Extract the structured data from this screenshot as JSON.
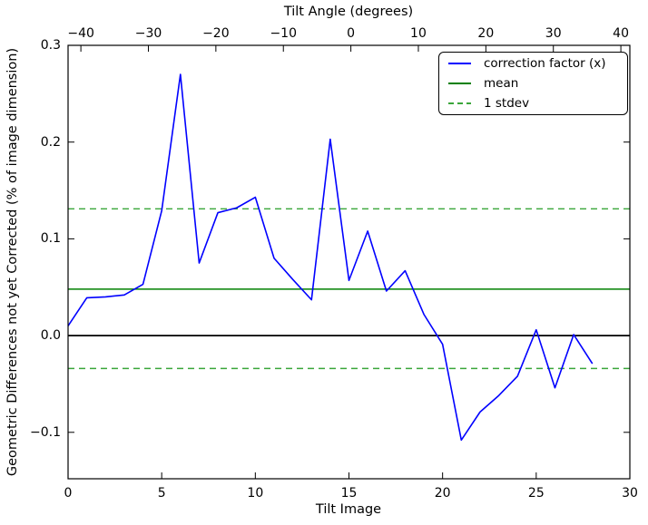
{
  "chart_data": {
    "type": "line",
    "top_axis_title": "Tilt Angle (degrees)",
    "xlabel": "Tilt Image",
    "ylabel": "Geometric Differences not yet Corrected (% of image dimension)",
    "xlim": [
      0,
      30
    ],
    "ylim": [
      -0.148,
      0.3
    ],
    "grid": false,
    "x_ticks": [
      0,
      5,
      10,
      15,
      20,
      25,
      30
    ],
    "x_tick_labels": [
      "0",
      "5",
      "10",
      "15",
      "20",
      "25",
      "30"
    ],
    "y_ticks": [
      0.3,
      0.2,
      0.1,
      0.0,
      -0.1
    ],
    "y_tick_labels": [
      "0.3",
      "0.2",
      "0.1",
      "0.0",
      "−0.1"
    ],
    "top_ticks": [
      -40,
      -30,
      -20,
      -10,
      0,
      10,
      20,
      30,
      40
    ],
    "top_tick_labels": [
      "−40",
      "−30",
      "−20",
      "−10",
      "0",
      "10",
      "20",
      "30",
      "40"
    ],
    "top_axis_map": {
      "zero_frac": 0.5034,
      "frac_per_degree": 0.012015
    },
    "x": [
      0,
      1,
      2,
      3,
      4,
      5,
      6,
      7,
      8,
      9,
      10,
      11,
      12,
      13,
      14,
      15,
      16,
      17,
      18,
      19,
      20,
      21,
      22,
      23,
      24,
      25,
      26,
      27,
      28
    ],
    "series": [
      {
        "name": "correction factor (x)",
        "values": [
          0.01,
          0.039,
          0.04,
          0.042,
          0.053,
          0.129,
          0.27,
          0.075,
          0.127,
          0.132,
          0.143,
          0.08,
          0.058,
          0.037,
          0.203,
          0.057,
          0.108,
          0.046,
          0.067,
          0.022,
          -0.009,
          -0.108,
          -0.079,
          -0.062,
          -0.042,
          0.006,
          -0.054,
          0.001,
          -0.029
        ]
      }
    ],
    "mean": 0.048,
    "stdev": 0.083,
    "stdev_upper": 0.131,
    "stdev_lower": -0.034,
    "zero_line": 0.0,
    "colors": {
      "series": "#0000ff",
      "mean": "#008000",
      "stdev": "#3aa63a",
      "zero_line": "#000000",
      "axes": "#000000",
      "background": "#ffffff"
    },
    "legend": {
      "position": "upper right",
      "entries": [
        {
          "label": "correction factor (x)",
          "color": "#0000ff",
          "dash": false
        },
        {
          "label": "mean",
          "color": "#008000",
          "dash": false
        },
        {
          "label": "1 stdev",
          "color": "#3aa63a",
          "dash": true
        }
      ]
    }
  }
}
